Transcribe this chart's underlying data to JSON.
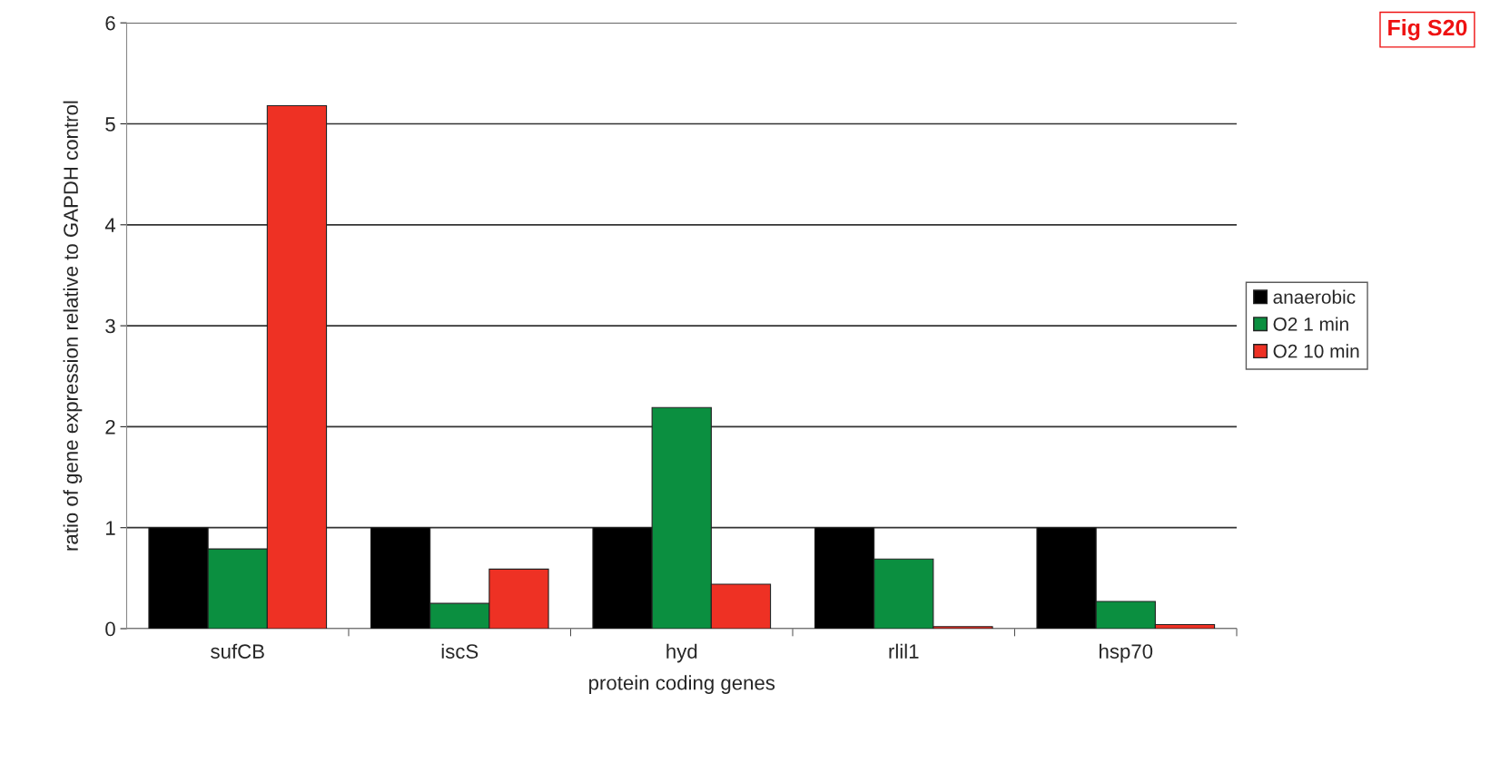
{
  "chart_data": {
    "type": "bar",
    "categories": [
      "sufCB",
      "iscS",
      "hyd",
      "rlil1",
      "hsp70"
    ],
    "series": [
      {
        "name": "anaerobic",
        "color": "#000000",
        "values": [
          1,
          1,
          1,
          1,
          1
        ]
      },
      {
        "name": "O2 1 min",
        "color": "#0b8f40",
        "values": [
          0.79,
          0.25,
          2.19,
          0.69,
          0.27
        ]
      },
      {
        "name": "O2 10 min",
        "color": "#ee3124",
        "values": [
          5.18,
          0.59,
          0.44,
          0.02,
          0.04
        ]
      }
    ],
    "xlabel": "protein coding genes",
    "ylabel": "ratio of gene expression relative to GAPDH control",
    "ylim": [
      0,
      6
    ],
    "yticks": [
      0,
      1,
      2,
      3,
      4,
      5,
      6
    ],
    "grid": "y",
    "legend": "right",
    "annotations": [
      "Fig S20"
    ]
  }
}
